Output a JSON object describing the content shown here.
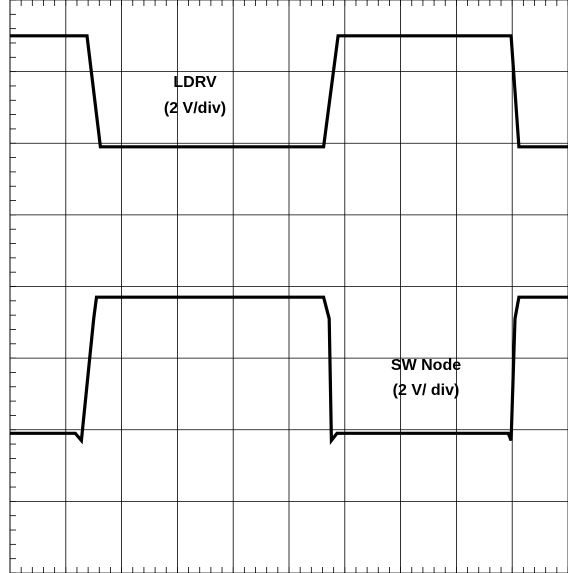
{
  "chart_data": {
    "type": "line",
    "grid": true,
    "divisions": {
      "x": 10,
      "y": 8
    },
    "minor_ticks_per_division": 5,
    "x_range_div": [
      0,
      10
    ],
    "y_range_div": [
      0,
      8
    ],
    "annotations": [
      {
        "lines": [
          "LDRV",
          "(2 V/div)"
        ]
      },
      {
        "lines": [
          "SW Node",
          "(2 V/ div)"
        ]
      }
    ],
    "series": [
      {
        "x": [
          0,
          1.38,
          1.62,
          5.62,
          5.88,
          8.98,
          9.12,
          10
        ],
        "y": [
          7.5,
          7.5,
          5.95,
          5.95,
          7.5,
          7.5,
          5.95,
          5.95
        ]
      },
      {
        "x": [
          0,
          1.17,
          1.28,
          1.5,
          1.55,
          5.62,
          5.72,
          5.76,
          5.86,
          8.93,
          8.98,
          9.05,
          9.12,
          10
        ],
        "y": [
          1.95,
          1.95,
          1.85,
          3.55,
          3.85,
          3.85,
          3.55,
          1.85,
          1.95,
          1.95,
          1.85,
          3.55,
          3.85,
          3.85
        ]
      }
    ],
    "colors": {
      "trace": "#000000",
      "grid": "#000000",
      "background": "#ffffff"
    }
  }
}
